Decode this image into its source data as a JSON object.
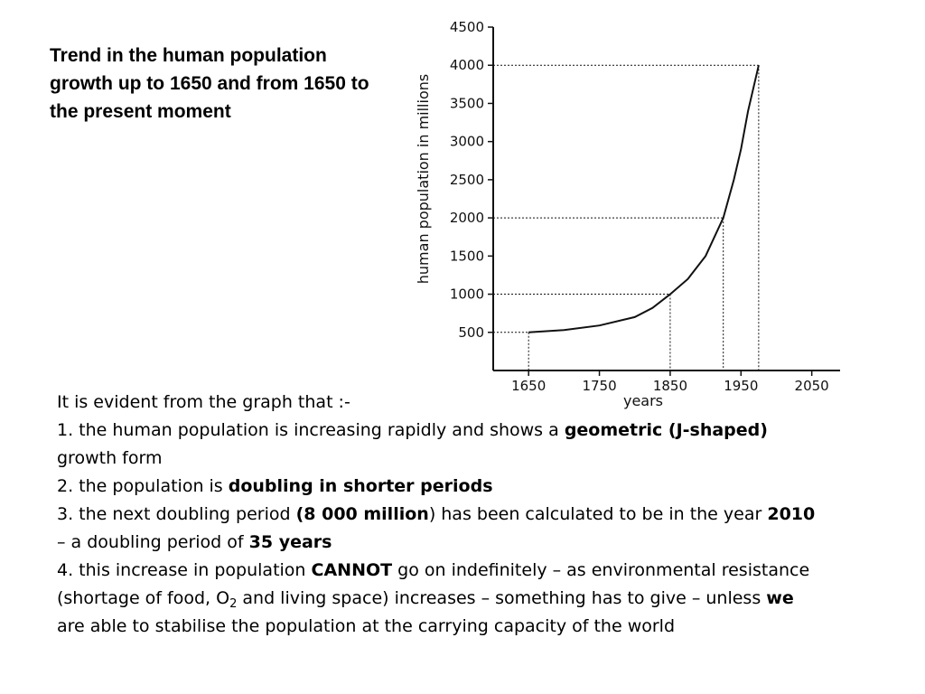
{
  "title": "Trend in the human population growth up to 1650 and from 1650 to the present moment",
  "chart_data": {
    "type": "line",
    "title": "",
    "xlabel": "years",
    "ylabel": "human population in millions",
    "xlim": [
      1600,
      2090
    ],
    "ylim": [
      0,
      4500
    ],
    "x_ticks": [
      1650,
      1750,
      1850,
      1950,
      2050
    ],
    "y_ticks": [
      500,
      1000,
      1500,
      2000,
      2500,
      3000,
      3500,
      4000,
      4500
    ],
    "grid": false,
    "series": [
      {
        "x": [
          1650,
          1700,
          1750,
          1800,
          1825,
          1850,
          1875,
          1900,
          1925,
          1940,
          1950,
          1960,
          1975
        ],
        "y": [
          500,
          530,
          590,
          700,
          820,
          1000,
          1200,
          1500,
          2000,
          2500,
          2900,
          3400,
          4000
        ]
      }
    ],
    "reference_points": [
      {
        "x": 1650,
        "y": 500
      },
      {
        "x": 1850,
        "y": 1000
      },
      {
        "x": 1925,
        "y": 2000
      },
      {
        "x": 1975,
        "y": 4000
      }
    ]
  },
  "body": {
    "intro": "It is evident from the graph that :-",
    "p1_a": "1. the human population is increasing rapidly and shows a ",
    "p1_b": "geometric (J-shaped)",
    "p1_c": "growth form",
    "p2_a": "2. the population is ",
    "p2_b": "doubling in shorter periods",
    "p3_a": "3. the next doubling period ",
    "p3_b": "(8 000 million",
    "p3_c": ") has been calculated to be in the year ",
    "p3_d": "2010",
    "p3_e": "– a doubling period of ",
    "p3_f": "35 years",
    "p4_a": "4. this increase in population ",
    "p4_b": "CANNOT",
    "p4_c": " go on indefinitely – as environmental resistance",
    "p4_d": "(shortage of food, O",
    "p4_sub": "2",
    "p4_e": "  and living space) increases – something has to give – unless ",
    "p4_f": "we",
    "p4_g": "are able to stabilise the population at the carrying capacity of the world"
  }
}
